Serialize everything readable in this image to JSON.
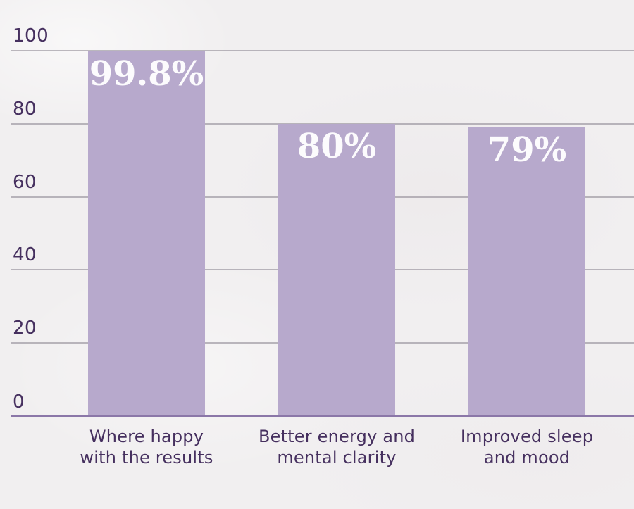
{
  "chart_data": {
    "type": "bar",
    "title": "",
    "xlabel": "",
    "ylabel": "",
    "categories": [
      "Where happy\nwith the results",
      "Better energy and\nmental clarity",
      "Improved sleep\nand mood"
    ],
    "values": [
      99.8,
      80,
      79
    ],
    "value_labels": [
      "99.8%",
      "80%",
      "79%"
    ],
    "yticks": [
      100,
      80,
      60,
      40,
      20,
      0
    ],
    "ytick_labels": [
      "100",
      "80",
      "60",
      "40",
      "20",
      "0"
    ],
    "ylim": [
      0,
      100
    ],
    "grid": true,
    "legend": false,
    "colors": {
      "bar_fill": "#b7a9cc",
      "value_text": "#fcfbfd",
      "axis_text": "#46305f",
      "gridline": "#a5a0ab",
      "baseline": "#8b77a8",
      "background": "#f1eff0"
    }
  }
}
